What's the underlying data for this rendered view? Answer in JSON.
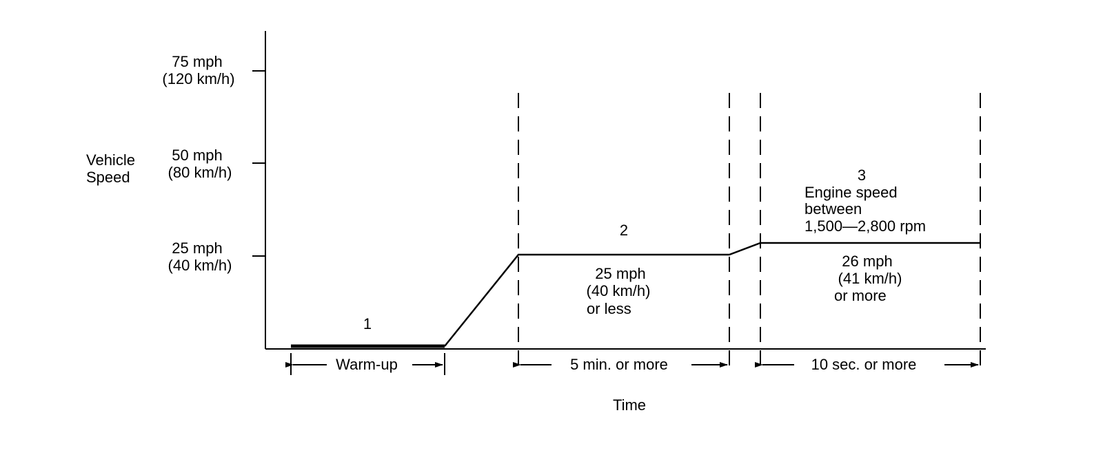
{
  "y_axis": {
    "title_lines": [
      "Vehicle",
      "Speed"
    ],
    "ticks": [
      {
        "speed_mph": 75,
        "lines": [
          "75 mph",
          "(120 km/h)"
        ]
      },
      {
        "speed_mph": 50,
        "lines": [
          "50 mph",
          "(80 km/h)"
        ]
      },
      {
        "speed_mph": 25,
        "lines": [
          "25 mph",
          "(40 km/h)"
        ]
      }
    ]
  },
  "x_axis": {
    "title": "Time"
  },
  "phases": {
    "p1": {
      "number": "1",
      "span_label": "Warm-up"
    },
    "p2": {
      "number": "2",
      "speed_lines": [
        "25 mph",
        "(40 km/h)",
        "or less"
      ],
      "span_label": "5 min. or more"
    },
    "p3": {
      "number": "3",
      "note_lines": [
        "Engine speed",
        "between",
        "1,500—2,800 rpm"
      ],
      "speed_lines": [
        "26 mph",
        "(41 km/h)",
        "or more"
      ],
      "span_label": "10 sec. or more"
    }
  }
}
